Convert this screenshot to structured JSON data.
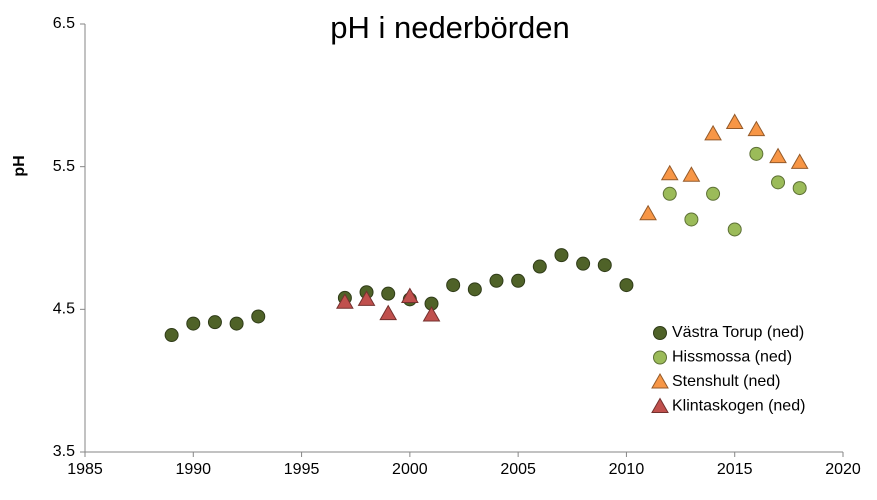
{
  "chart_data": {
    "type": "scatter",
    "title": "pH i nederbörden",
    "ylabel": "pH",
    "xlim": [
      1985,
      2020
    ],
    "xticks": [
      1985,
      1990,
      1995,
      2000,
      2005,
      2010,
      2015,
      2020
    ],
    "ylim": [
      3.5,
      6.5
    ],
    "yticks": [
      3.5,
      4.5,
      5.5,
      6.5
    ],
    "grid": false,
    "legend": "lower right",
    "series": [
      {
        "name": "Västra Torup (ned)",
        "color": "#4f6228",
        "marker": "circle",
        "x": [
          1989,
          1990,
          1991,
          1992,
          1993,
          1997,
          1998,
          1999,
          2000,
          2001,
          2002,
          2003,
          2004,
          2005,
          2006,
          2007,
          2008,
          2009,
          2010
        ],
        "values": [
          4.32,
          4.4,
          4.41,
          4.4,
          4.45,
          4.58,
          4.62,
          4.61,
          4.57,
          4.54,
          4.67,
          4.64,
          4.7,
          4.7,
          4.8,
          4.88,
          4.82,
          4.81,
          4.67
        ]
      },
      {
        "name": "Hissmossa (ned)",
        "color": "#9bbb59",
        "marker": "circle",
        "x": [
          2012,
          2013,
          2014,
          2015,
          2016,
          2017,
          2018
        ],
        "values": [
          5.31,
          5.13,
          5.31,
          5.06,
          5.59,
          5.39,
          5.35
        ]
      },
      {
        "name": "Stenshult (ned)",
        "color": "#f79646",
        "marker": "triangle",
        "x": [
          2011,
          2012,
          2013,
          2014,
          2015,
          2016,
          2017,
          2018
        ],
        "values": [
          5.17,
          5.45,
          5.44,
          5.73,
          5.81,
          5.76,
          5.57,
          5.53
        ]
      },
      {
        "name": "Klintaskogen (ned)",
        "color": "#c0504d",
        "marker": "triangle",
        "x": [
          1997,
          1998,
          1999,
          2000,
          2001
        ],
        "values": [
          4.55,
          4.57,
          4.47,
          4.59,
          4.46
        ]
      }
    ]
  }
}
